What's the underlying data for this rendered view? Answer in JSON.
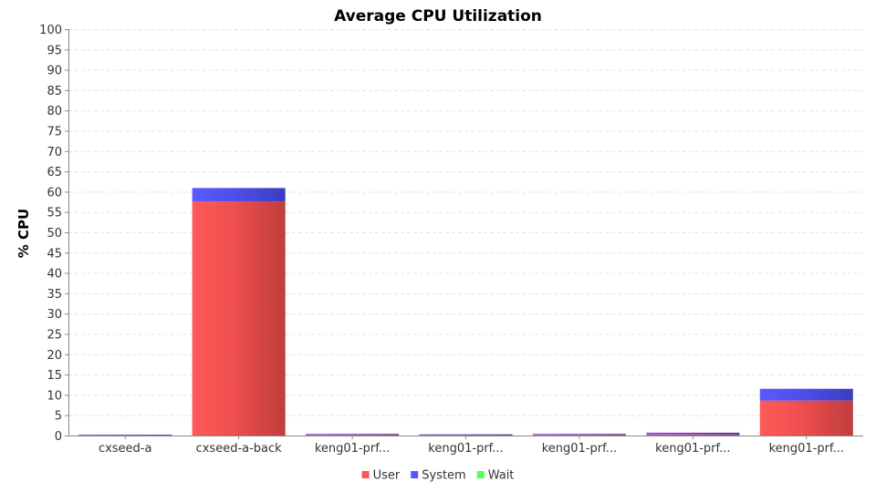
{
  "chart_data": {
    "type": "bar",
    "stacked": true,
    "title": "Average CPU Utilization",
    "ylabel": "% CPU",
    "xlabel": "",
    "ylim": [
      0,
      100
    ],
    "yticks": [
      0,
      5,
      10,
      15,
      20,
      25,
      30,
      35,
      40,
      45,
      50,
      55,
      60,
      65,
      70,
      75,
      80,
      85,
      90,
      95,
      100
    ],
    "grid": true,
    "legend_position": "bottom",
    "categories": [
      "cxseed-a",
      "cxseed-a-back",
      "keng01-prf...",
      "keng01-prf...",
      "keng01-prf...",
      "keng01-prf...",
      "keng01-prf..."
    ],
    "series": [
      {
        "name": "User",
        "color": "#ff5555",
        "values": [
          0.1,
          57.6,
          0.2,
          0.1,
          0.2,
          0.3,
          8.6
        ]
      },
      {
        "name": "System",
        "color": "#5555ff",
        "values": [
          0.1,
          3.3,
          0.2,
          0.2,
          0.2,
          0.4,
          2.9
        ]
      },
      {
        "name": "Wait",
        "color": "#55ff55",
        "values": [
          0,
          0,
          0,
          0,
          0,
          0,
          0
        ]
      }
    ]
  }
}
